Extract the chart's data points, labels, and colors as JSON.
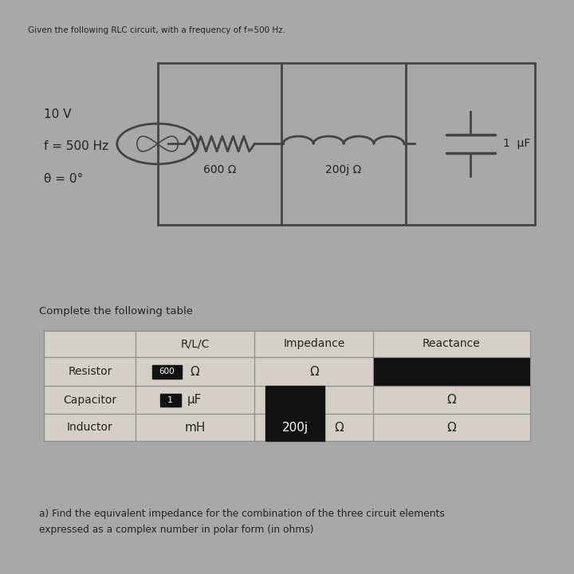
{
  "fig_bg": "#a8a8a8",
  "top_panel_bg": "#d4d0c8",
  "bottom_panel_bg": "#b8b4ac",
  "top_title": "Given the following RLC circuit, with a frequency of f=500 Hz.",
  "source_labels": [
    "10 V",
    "f = 500 Hz",
    "θ = 0°"
  ],
  "circuit_R_label": "600 Ω",
  "circuit_L_label": "200j Ω",
  "circuit_C_label": "1  μF",
  "table_title": "Complete the following table",
  "col_headers": [
    "",
    "R/L/C",
    "Impedance",
    "Reactance"
  ],
  "row_labels": [
    "Resistor",
    "Capacitor",
    "Inductor"
  ],
  "footer_text": "a) Find the equivalent impedance for the combination of the three circuit elements\nexpressed as a complex number in polar form (in ohms)",
  "cell_bg": "#d4d0c8",
  "black": "#111111",
  "wire_color": "#444444",
  "text_color": "#222222"
}
